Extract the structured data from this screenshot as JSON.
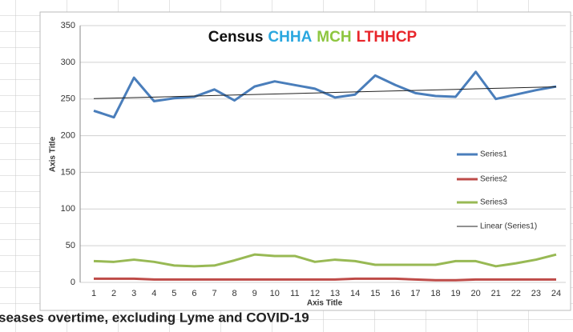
{
  "chart_data": {
    "type": "line",
    "title_parts": [
      {
        "text": "Census",
        "color": "#111111"
      },
      {
        "text": "CHHA",
        "color": "#2aa7df"
      },
      {
        "text": "MCH",
        "color": "#8dc63f"
      },
      {
        "text": "LTHHCP",
        "color": "#e8262b"
      }
    ],
    "x_label": "Axis Title",
    "y_label": "Axis Title",
    "caption": "seases overtime, excluding Lyme and COVID-19",
    "categories": [
      "1",
      "2",
      "3",
      "4",
      "5",
      "6",
      "7",
      "8",
      "9",
      "10",
      "11",
      "12",
      "13",
      "14",
      "15",
      "16",
      "17",
      "18",
      "19",
      "20",
      "21",
      "22",
      "23",
      "24"
    ],
    "series": [
      {
        "name": "Series1",
        "color": "#4a7ebb",
        "width": 3,
        "values": [
          234,
          225,
          279,
          247,
          251,
          253,
          263,
          248,
          267,
          274,
          269,
          264,
          252,
          256,
          282,
          269,
          258,
          254,
          253,
          287,
          250,
          256,
          262,
          267
        ]
      },
      {
        "name": "Series2",
        "color": "#be4b48",
        "width": 3,
        "values": [
          5,
          5,
          5,
          4,
          4,
          4,
          4,
          4,
          4,
          4,
          4,
          4,
          4,
          5,
          5,
          5,
          4,
          3,
          3,
          4,
          4,
          4,
          4,
          4
        ]
      },
      {
        "name": "Series3",
        "color": "#98b954",
        "width": 3,
        "values": [
          29,
          28,
          31,
          28,
          23,
          22,
          23,
          30,
          38,
          36,
          36,
          28,
          31,
          29,
          24,
          24,
          24,
          24,
          29,
          29,
          22,
          26,
          31,
          38
        ]
      },
      {
        "name": "Linear (Series1)",
        "color": "#222222",
        "width": 1,
        "values": [
          250.5,
          251.2,
          251.9,
          252.6,
          253.3,
          254,
          254.7,
          255.4,
          256.1,
          256.8,
          257.5,
          258.2,
          258.9,
          259.6,
          260.3,
          261,
          261.7,
          262.4,
          263.1,
          263.8,
          264.5,
          265.2,
          265.9,
          266.6
        ]
      }
    ],
    "ylim": [
      0,
      350
    ],
    "yticks": [
      0,
      50,
      100,
      150,
      200,
      250,
      300,
      350
    ],
    "grid": true,
    "legend": "right"
  }
}
